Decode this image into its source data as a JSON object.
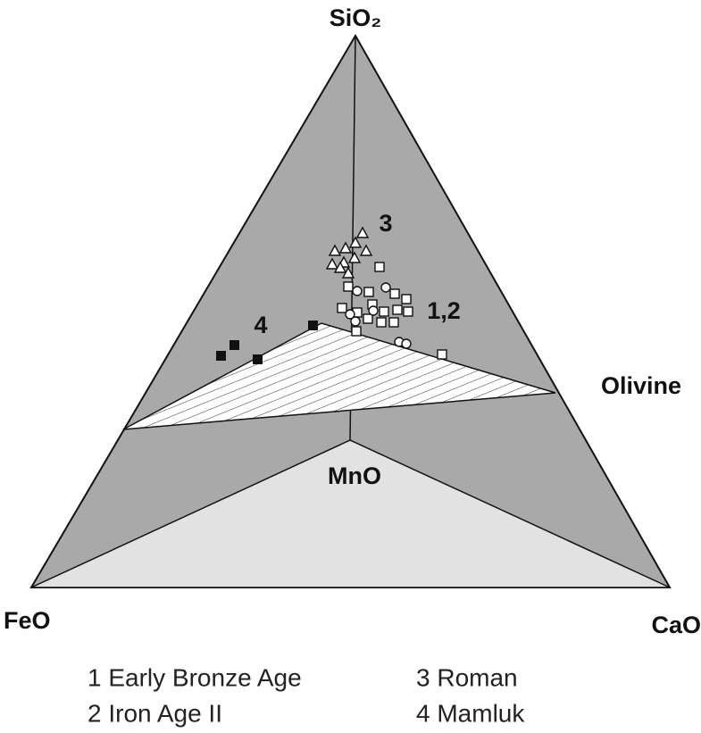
{
  "diagram": {
    "vertices": {
      "top": "SiO₂",
      "left": "FeO",
      "right": "CaO"
    },
    "fields": {
      "olivine": "Olivine",
      "mno": "MnO"
    },
    "group_labels": [
      "3",
      "1,2",
      "4"
    ],
    "legend": [
      "1 Early Bronze Age",
      "2 Iron Age II",
      "3 Roman",
      "4 Mamluk"
    ]
  }
}
